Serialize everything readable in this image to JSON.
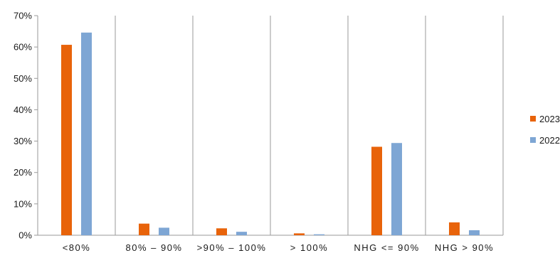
{
  "chart_data": {
    "type": "bar",
    "categories": [
      "<80%",
      "80% – 90%",
      ">90% – 100%",
      "> 100%",
      "NHG <= 90%",
      "NHG > 90%"
    ],
    "series": [
      {
        "name": "2023",
        "color": "#e8630a",
        "values": [
          0.607,
          0.037,
          0.022,
          0.006,
          0.282,
          0.041
        ]
      },
      {
        "name": "2022",
        "color": "#7ea6d4",
        "values": [
          0.646,
          0.024,
          0.011,
          0.003,
          0.294,
          0.016
        ]
      }
    ],
    "y_ticks": [
      "0%",
      "10%",
      "20%",
      "30%",
      "40%",
      "50%",
      "60%",
      "70%"
    ],
    "ylim": [
      0,
      0.7
    ],
    "grid": "vertical category separators",
    "legend": "right"
  }
}
